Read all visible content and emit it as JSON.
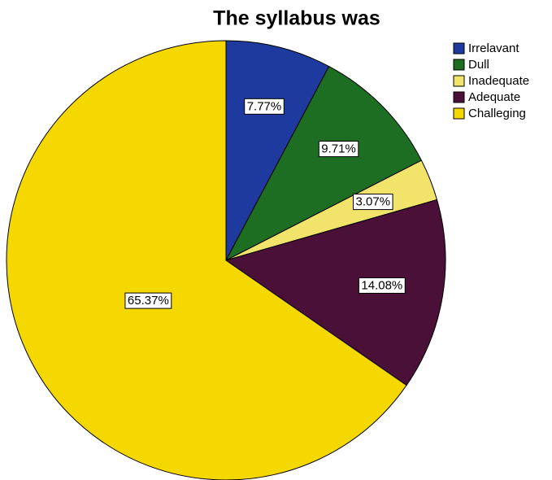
{
  "chart_data": {
    "type": "pie",
    "title": "The syllabus was",
    "categories": [
      "Irrelavant",
      "Dull",
      "Inadequate",
      "Adequate",
      "Challeging"
    ],
    "values": [
      7.77,
      9.71,
      3.07,
      14.08,
      65.37
    ],
    "value_labels": [
      "7.77%",
      "9.71%",
      "3.07%",
      "14.08%",
      "65.37%"
    ],
    "colors": [
      "#1f3a9e",
      "#1d6e22",
      "#f2e36a",
      "#4a1038",
      "#f5d800"
    ],
    "legend": "top-right"
  }
}
